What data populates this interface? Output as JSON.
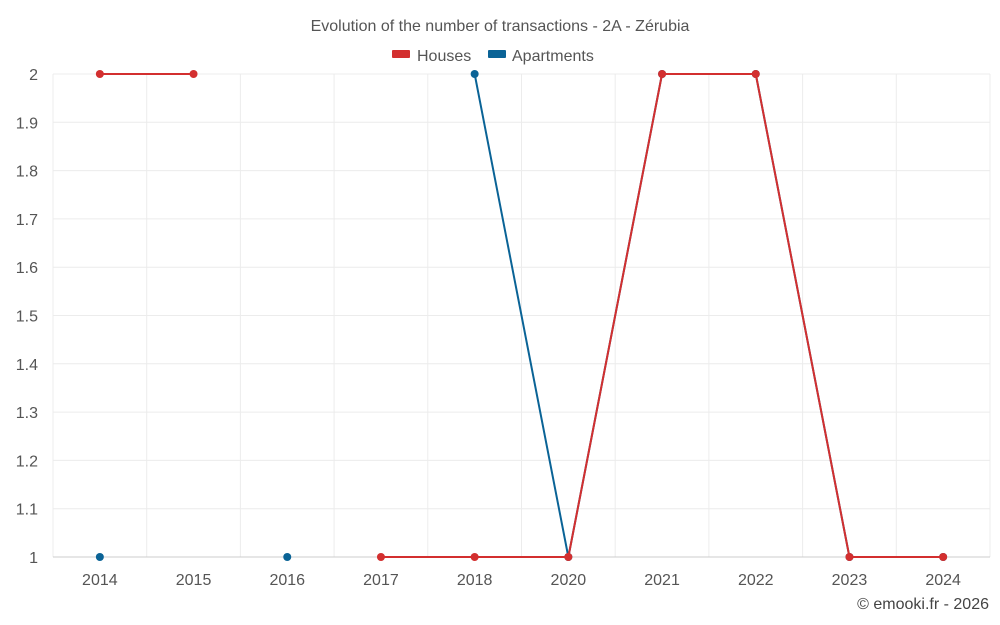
{
  "chart_data": {
    "type": "line",
    "title": "Evolution of the number of transactions - 2A - Zérubia",
    "categories": [
      "2014",
      "2015",
      "2016",
      "2017",
      "2018",
      "2020",
      "2021",
      "2022",
      "2023",
      "2024"
    ],
    "ylim": [
      1,
      2
    ],
    "y_ticks": [
      "1",
      "1.1",
      "1.2",
      "1.3",
      "1.4",
      "1.5",
      "1.6",
      "1.7",
      "1.8",
      "1.9",
      "2"
    ],
    "grid": true,
    "legend_position": "top-center",
    "series": [
      {
        "name": "Houses",
        "color": "#d32f2f",
        "values": [
          2,
          2,
          null,
          1,
          1,
          1,
          2,
          2,
          1,
          1
        ]
      },
      {
        "name": "Apartments",
        "color": "#0a6396",
        "values": [
          1,
          null,
          1,
          null,
          2,
          1,
          2,
          2,
          1,
          1
        ]
      }
    ]
  },
  "credit": "© emooki.fr - 2026"
}
